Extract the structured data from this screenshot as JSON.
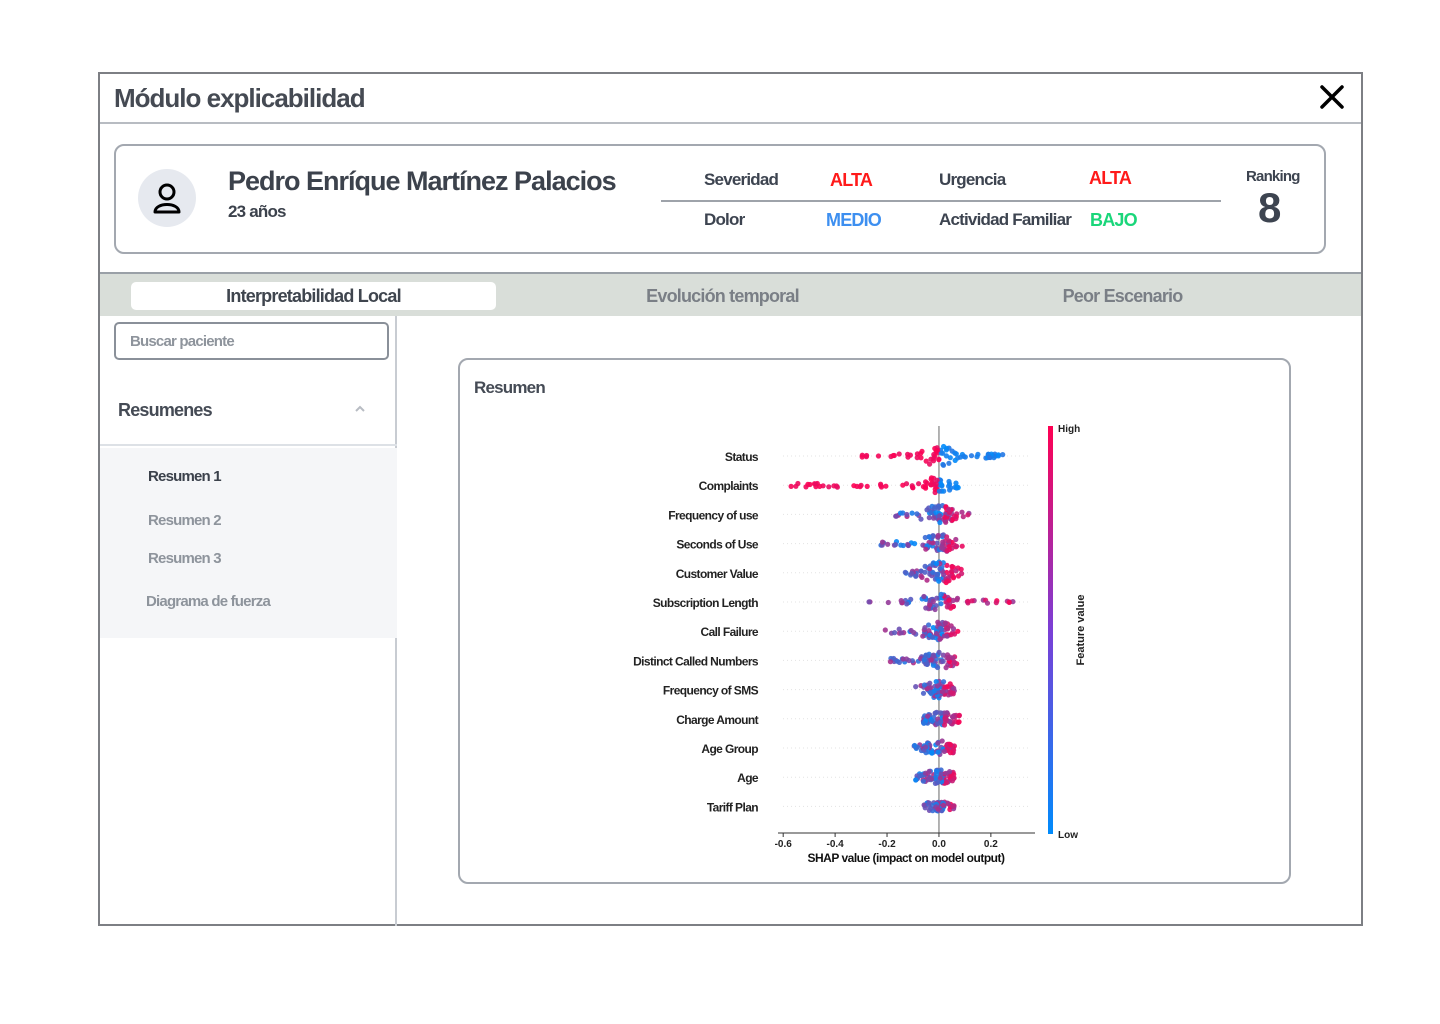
{
  "window": {
    "title": "Módulo explicabilidad"
  },
  "patient": {
    "name": "Pedro Enríque Martínez Palacios",
    "age": "23 años",
    "metrics": [
      {
        "label": "Severidad",
        "value": "ALTA",
        "color": "#ff1a1a"
      },
      {
        "label": "Urgencia",
        "value": "ALTA",
        "color": "#ff1a1a"
      },
      {
        "label": "Dolor",
        "value": "MEDIO",
        "color": "#3d8ff0"
      },
      {
        "label": "Actividad Familiar",
        "value": "BAJO",
        "color": "#1ad67a"
      }
    ],
    "ranking_label": "Ranking",
    "ranking_value": "8"
  },
  "tabs": [
    {
      "label": "Interpretabilidad Local",
      "active": true
    },
    {
      "label": "Evolución temporal",
      "active": false
    },
    {
      "label": "Peor Escenario",
      "active": false
    }
  ],
  "sidebar": {
    "search_placeholder": "Buscar paciente",
    "section_title": "Resumenes",
    "items": [
      {
        "label": "Resumen 1",
        "active": true
      },
      {
        "label": "Resumen 2",
        "active": false
      },
      {
        "label": "Resumen 3",
        "active": false
      },
      {
        "label": "Diagrama de fuerza",
        "active": false
      }
    ]
  },
  "summary": {
    "title": "Resumen"
  },
  "chart_data": {
    "type": "scatter",
    "subtype": "shap-beeswarm",
    "xlabel": "SHAP value (impact on model output)",
    "xlim": [
      -0.62,
      0.37
    ],
    "xticks": [
      "-0.6",
      "-0.4",
      "-0.2",
      "0.0",
      "0.2"
    ],
    "xtick_values": [
      -0.6,
      -0.4,
      -0.2,
      0.0,
      0.2
    ],
    "colorbar": {
      "label": "Feature value",
      "high": "High",
      "low": "Low",
      "high_color": "#ff0052",
      "low_color": "#008bfb"
    },
    "features": [
      {
        "name": "Status",
        "min": -0.31,
        "max": 0.26,
        "spread": 0.9,
        "bias": 0.08
      },
      {
        "name": "Complaints",
        "min": -0.58,
        "max": 0.07,
        "spread": 0.7,
        "bias": 0.05
      },
      {
        "name": "Frequency of use",
        "min": -0.17,
        "max": 0.13,
        "spread": 0.8,
        "bias": 0.02
      },
      {
        "name": "Seconds of Use",
        "min": -0.23,
        "max": 0.1,
        "spread": 0.8,
        "bias": 0.02
      },
      {
        "name": "Customer Value",
        "min": -0.13,
        "max": 0.09,
        "spread": 1.0,
        "bias": 0.0
      },
      {
        "name": "Subscription Length",
        "min": -0.36,
        "max": 0.33,
        "spread": 0.8,
        "bias": 0.0
      },
      {
        "name": "Call Failure",
        "min": -0.23,
        "max": 0.08,
        "spread": 0.8,
        "bias": 0.0
      },
      {
        "name": "Distinct Called Numbers",
        "min": -0.2,
        "max": 0.08,
        "spread": 0.7,
        "bias": 0.0
      },
      {
        "name": "Frequency of SMS",
        "min": -0.09,
        "max": 0.06,
        "spread": 0.7,
        "bias": 0.0
      },
      {
        "name": "Charge Amount",
        "min": -0.06,
        "max": 0.08,
        "spread": 0.6,
        "bias": 0.0
      },
      {
        "name": "Age Group",
        "min": -0.1,
        "max": 0.06,
        "spread": 0.6,
        "bias": 0.0
      },
      {
        "name": "Age",
        "min": -0.09,
        "max": 0.06,
        "spread": 0.6,
        "bias": 0.0
      },
      {
        "name": "Tariff Plan",
        "min": -0.01,
        "max": 0.02,
        "spread": 0.3,
        "bias": 0.0
      }
    ]
  }
}
